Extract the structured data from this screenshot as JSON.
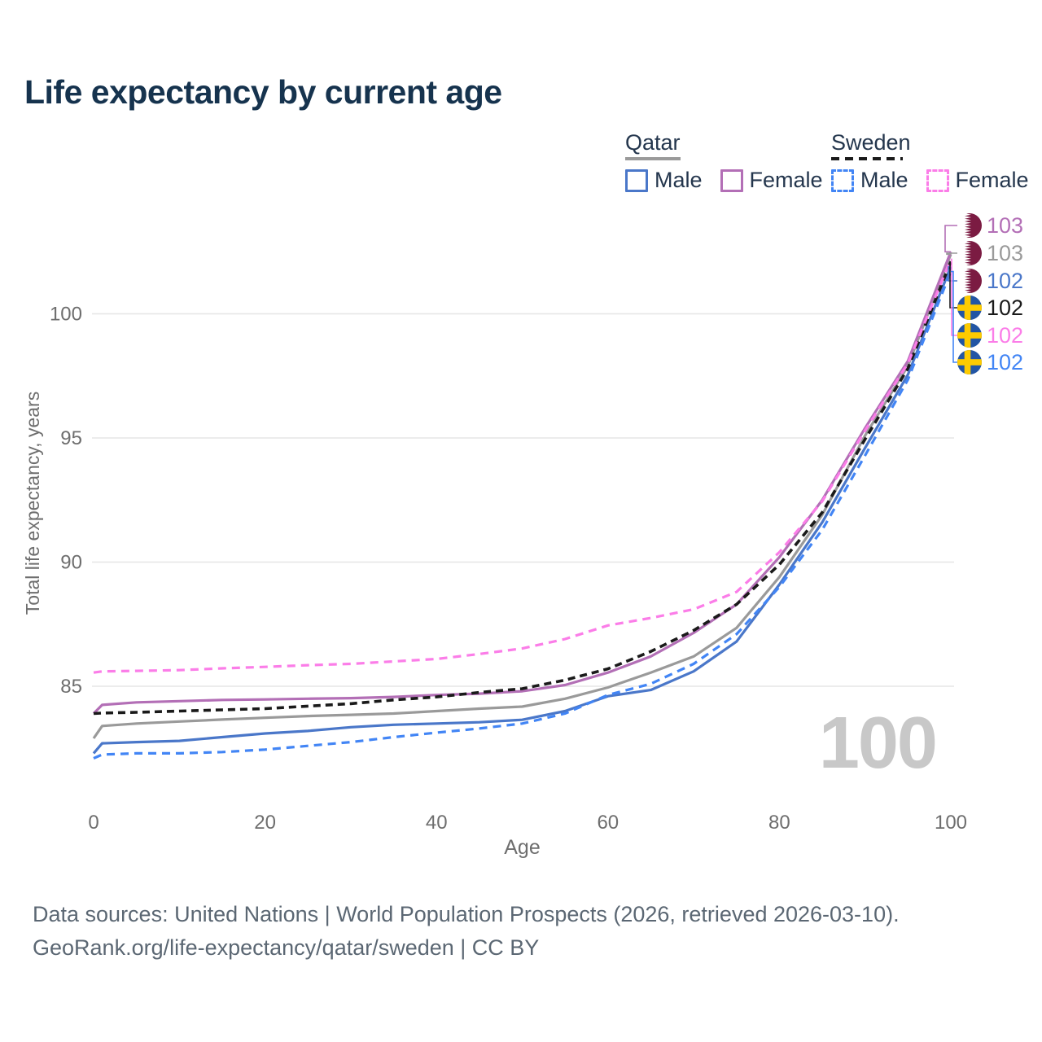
{
  "title": "Life expectancy by current age",
  "watermark": "100",
  "footer": {
    "line1": "Data sources: United Nations | World Population Prospects (2026, retrieved 2026-03-10).",
    "line2": "GeoRank.org/life-expectancy/qatar/sweden | CC BY"
  },
  "legend": {
    "groups": [
      {
        "label": "Qatar",
        "underline_color": "#9a9a9a",
        "underline_style": "solid",
        "entries": [
          {
            "label": "Male",
            "color": "#4a77c9",
            "style": "solid"
          },
          {
            "label": "Female",
            "color": "#b36fb6",
            "style": "solid"
          }
        ]
      },
      {
        "label": "Sweden",
        "underline_color": "#1a1a1a",
        "underline_style": "dashed",
        "entries": [
          {
            "label": "Male",
            "color": "#4285f5",
            "style": "dashed"
          },
          {
            "label": "Female",
            "color": "#fb7de8",
            "style": "dashed"
          }
        ]
      }
    ]
  },
  "colors": {
    "title": "#16334e",
    "legend_text": "#24364d",
    "tick_text": "#6e6e6e",
    "grid": "#e6e6e6",
    "footer_text": "#5b6773",
    "watermark": "#c8c8c8",
    "qatar_flag_maroon": "#7b1b42",
    "sweden_flag_blue": "#2255a4",
    "sweden_flag_yellow": "#fecb00"
  },
  "chart_data": {
    "type": "line",
    "title": "Life expectancy by current age",
    "xlabel": "Age",
    "ylabel": "Total life expectancy, years",
    "x_ticks": [
      0,
      20,
      40,
      60,
      80,
      100
    ],
    "y_ticks": [
      85,
      90,
      95,
      100
    ],
    "xlim": [
      0,
      100
    ],
    "ylim": [
      81.5,
      103.2
    ],
    "grid": "horizontal",
    "legend_position": "top-right",
    "x": [
      0,
      1,
      5,
      10,
      15,
      20,
      25,
      30,
      35,
      40,
      45,
      50,
      55,
      60,
      65,
      70,
      75,
      80,
      85,
      90,
      95,
      100
    ],
    "series": [
      {
        "name": "Qatar Male",
        "country": "Qatar",
        "sex": "Male",
        "flag": "qatar",
        "color": "#4a77c9",
        "dash": "solid",
        "end_label": "102",
        "values": [
          82.3,
          82.7,
          82.75,
          82.8,
          82.95,
          83.1,
          83.2,
          83.35,
          83.45,
          83.5,
          83.55,
          83.65,
          84.0,
          84.6,
          84.85,
          85.6,
          86.8,
          89.1,
          91.6,
          94.6,
          97.55,
          101.9
        ]
      },
      {
        "name": "Qatar Female",
        "country": "Qatar",
        "sex": "Female",
        "flag": "qatar",
        "color": "#b36fb6",
        "dash": "solid",
        "end_label": "103",
        "values": [
          83.9,
          84.25,
          84.35,
          84.4,
          84.45,
          84.47,
          84.5,
          84.52,
          84.57,
          84.65,
          84.7,
          84.8,
          85.05,
          85.55,
          86.2,
          87.15,
          88.3,
          90.2,
          92.5,
          95.4,
          98.1,
          102.5
        ]
      },
      {
        "name": "Qatar Both sexes",
        "country": "Qatar",
        "sex": "Both",
        "flag": "qatar",
        "color": "#9a9a9a",
        "dash": "solid",
        "end_label": "103",
        "values": [
          82.9,
          83.4,
          83.5,
          83.58,
          83.66,
          83.73,
          83.8,
          83.85,
          83.9,
          84.0,
          84.1,
          84.18,
          84.5,
          84.95,
          85.55,
          86.2,
          87.35,
          89.4,
          91.9,
          95.1,
          97.9,
          102.4
        ]
      },
      {
        "name": "Sweden Male",
        "country": "Sweden",
        "sex": "Male",
        "flag": "sweden",
        "color": "#4285f5",
        "dash": "dashed",
        "end_label": "102",
        "values": [
          82.1,
          82.25,
          82.3,
          82.3,
          82.35,
          82.45,
          82.6,
          82.75,
          82.95,
          83.13,
          83.3,
          83.5,
          83.9,
          84.65,
          85.1,
          85.9,
          87.1,
          89.0,
          91.3,
          94.3,
          97.35,
          101.7
        ]
      },
      {
        "name": "Sweden Female",
        "country": "Sweden",
        "sex": "Female",
        "flag": "sweden",
        "color": "#fb7de8",
        "dash": "dashed",
        "end_label": "102",
        "values": [
          85.55,
          85.6,
          85.62,
          85.65,
          85.72,
          85.78,
          85.85,
          85.9,
          86.0,
          86.1,
          86.3,
          86.52,
          86.9,
          87.45,
          87.75,
          88.1,
          88.8,
          90.4,
          92.45,
          95.3,
          98.0,
          102.2
        ]
      },
      {
        "name": "Sweden Both sexes",
        "country": "Sweden",
        "sex": "Both",
        "flag": "sweden",
        "color": "#1a1a1a",
        "dash": "dashed",
        "end_label": "102",
        "values": [
          83.9,
          83.92,
          83.95,
          84.0,
          84.05,
          84.1,
          84.2,
          84.3,
          84.45,
          84.57,
          84.75,
          84.9,
          85.25,
          85.7,
          86.4,
          87.25,
          88.3,
          89.9,
          92.0,
          94.95,
          97.8,
          102.1
        ]
      }
    ],
    "end_labels": [
      {
        "series": 1,
        "value": "103"
      },
      {
        "series": 2,
        "value": "103"
      },
      {
        "series": 0,
        "value": "102"
      },
      {
        "series": 5,
        "value": "102"
      },
      {
        "series": 4,
        "value": "102"
      },
      {
        "series": 3,
        "value": "102"
      }
    ]
  }
}
